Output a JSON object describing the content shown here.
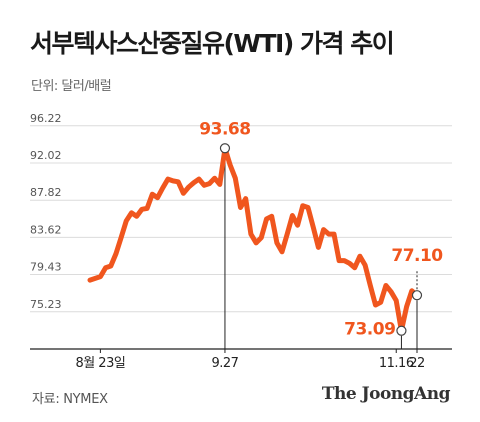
{
  "title": "서부텍사스산중질유(WTI) 가격 추이",
  "unit": "단위: 달러/배럴",
  "source": "자료: NYMEX",
  "brand": "The JoongAng",
  "colors": {
    "line": "#f0561e",
    "grid": "#dcdcdc",
    "axis": "#222222",
    "marker_fill": "#ffffff"
  },
  "chart_data": {
    "type": "line",
    "title": "서부텍사스산중질유(WTI) 가격 추이",
    "ylabel": "달러/배럴",
    "ylim": [
      71.03,
      98.0
    ],
    "yticks": [
      "96.22",
      "92.02",
      "87.82",
      "83.62",
      "79.43",
      "75.23"
    ],
    "x_ticks": [
      {
        "index": 2,
        "label": "8월 23일"
      },
      {
        "index": 26,
        "label": "9.27"
      },
      {
        "index": 59,
        "label": "11.16"
      },
      {
        "index": 63,
        "label": "22"
      }
    ],
    "values": [
      78.8,
      79.0,
      79.2,
      80.2,
      80.4,
      81.8,
      83.6,
      85.5,
      86.4,
      86.0,
      86.8,
      86.9,
      88.5,
      88.1,
      89.2,
      90.2,
      90.0,
      89.9,
      88.6,
      89.3,
      89.8,
      90.2,
      89.5,
      89.7,
      90.3,
      89.6,
      93.68,
      91.8,
      90.3,
      87.0,
      88.0,
      84.0,
      83.0,
      83.6,
      85.7,
      86.0,
      83.0,
      82.0,
      84.0,
      86.1,
      85.0,
      87.2,
      87.0,
      84.8,
      82.5,
      84.5,
      84.0,
      84.0,
      81.0,
      81.0,
      80.7,
      80.2,
      81.5,
      80.5,
      78.2,
      76.0,
      76.3,
      78.2,
      77.5,
      76.5,
      73.09,
      75.8,
      77.6,
      77.1
    ],
    "annotations": [
      {
        "index": 26,
        "label": "93.68"
      },
      {
        "index": 60,
        "label": "73.09"
      },
      {
        "index": 63,
        "label": "77.10"
      }
    ],
    "grid": true
  }
}
